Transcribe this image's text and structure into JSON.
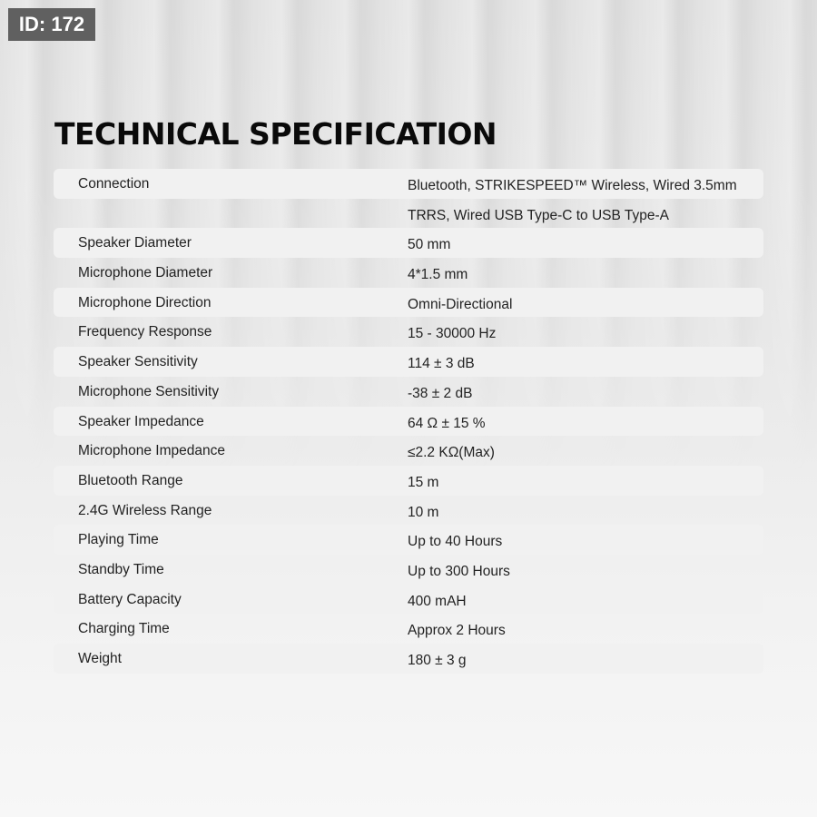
{
  "badge": "ID: 172",
  "title": "TECHNICAL SPECIFICATION",
  "rows": [
    {
      "label": "Connection",
      "value": "Bluetooth, STRIKESPEED™ Wireless, Wired 3.5mm"
    },
    {
      "label": "",
      "value": "TRRS, Wired USB Type-C to USB Type-A"
    },
    {
      "label": "Speaker Diameter",
      "value": "50 mm"
    },
    {
      "label": "Microphone Diameter",
      "value": "4*1.5 mm"
    },
    {
      "label": "Microphone Direction",
      "value": "Omni-Directional"
    },
    {
      "label": "Frequency Response",
      "value": "15 - 30000 Hz"
    },
    {
      "label": "Speaker Sensitivity",
      "value": "114 ± 3 dB"
    },
    {
      "label": "Microphone Sensitivity",
      "value": "-38 ± 2 dB"
    },
    {
      "label": "Speaker Impedance",
      "value": "64 Ω ± 15 %"
    },
    {
      "label": "Microphone Impedance",
      "value": "≤2.2 KΩ(Max)"
    },
    {
      "label": "Bluetooth Range",
      "value": "15 m"
    },
    {
      "label": "2.4G Wireless Range",
      "value": "10 m"
    },
    {
      "label": "Playing Time",
      "value": "Up to 40 Hours"
    },
    {
      "label": "Standby Time",
      "value": "Up to 300 Hours"
    },
    {
      "label": "Battery Capacity",
      "value": "400 mAH"
    },
    {
      "label": "Charging Time",
      "value": "Approx 2 Hours"
    },
    {
      "label": "Weight",
      "value": "180 ± 3 g"
    }
  ]
}
